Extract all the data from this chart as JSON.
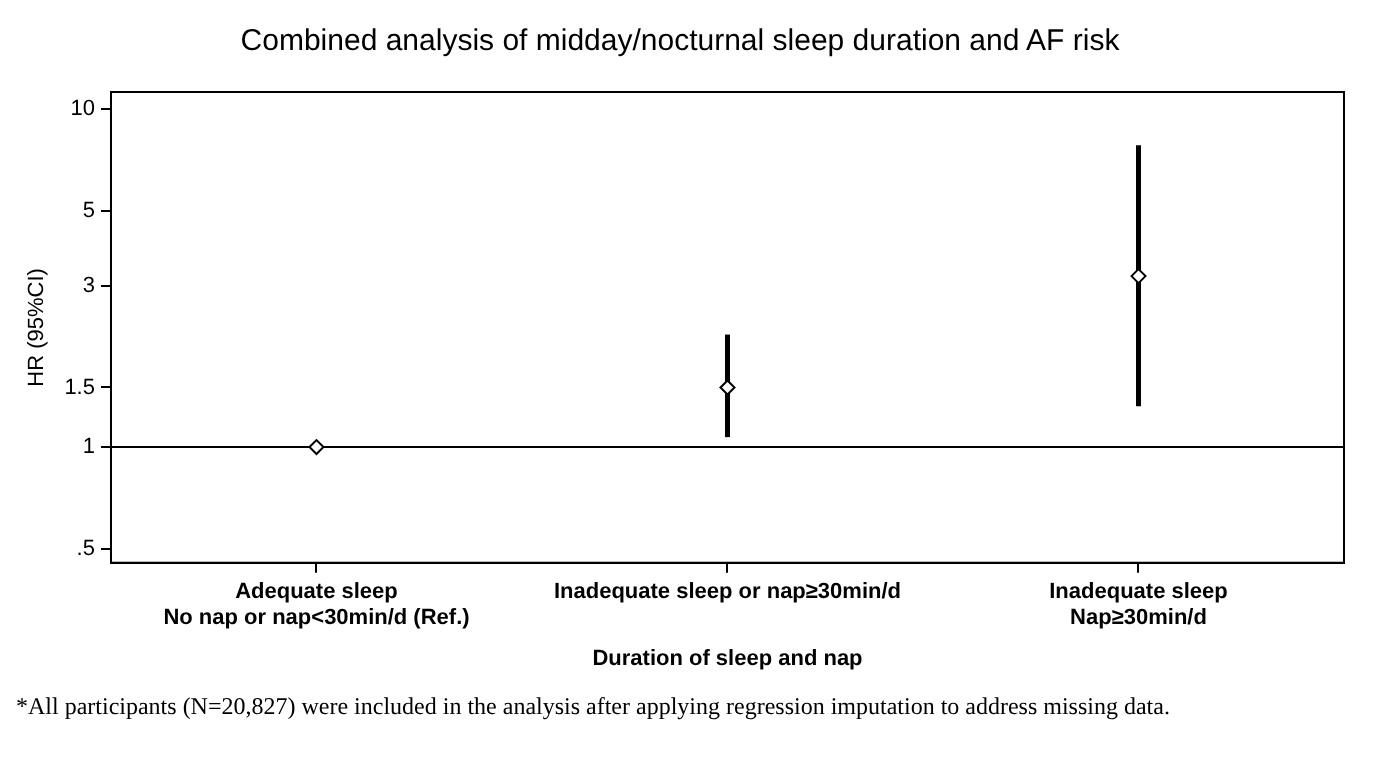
{
  "chart_data": {
    "type": "scatter",
    "title": "Combined analysis of midday/nocturnal sleep duration and AF risk",
    "xlabel": "Duration of sleep and nap",
    "ylabel": "HR (95%CI)",
    "categories": [
      "Adequate sleep\nNo nap or nap<30min/d (Ref.)",
      "Inadequate sleep or nap≥30min/d",
      "Inadequate sleep\nNap≥30min/d"
    ],
    "series": [
      {
        "color": "#000000",
        "values": [
          1,
          1.5,
          3.2
        ],
        "errors": [
          null,
          [
            1.07,
            2.15
          ],
          [
            1.32,
            7.8
          ]
        ]
      }
    ],
    "log": "y",
    "ylim": [
      0.455,
      11.2
    ],
    "yticks": [
      {
        "value": 0.5,
        "label": ".5"
      },
      1,
      1.5,
      3,
      5,
      10
    ],
    "ref_lines": [
      {
        "axis": "y",
        "value": 1,
        "color": "#000000"
      }
    ],
    "marker": "diamond",
    "grid": false,
    "legend": false,
    "annotations": [
      "*All participants (N=20,827) were included in the analysis after applying regression imputation to address missing data."
    ]
  }
}
